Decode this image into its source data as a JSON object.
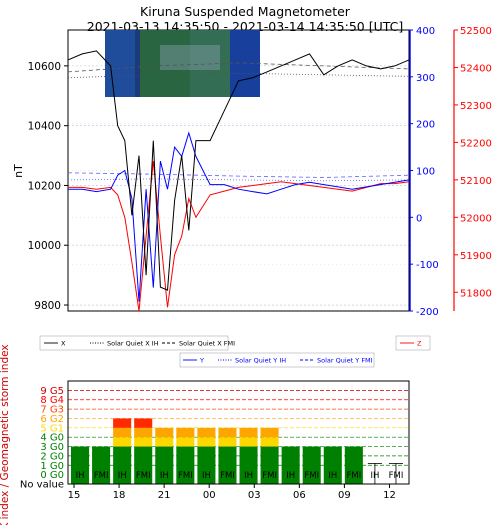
{
  "chart_data": [
    {
      "type": "line",
      "title": "Kiruna Suspended Magnetometer",
      "subtitle": "2021-03-13 14:35:50 - 2021-03-14 14:35:50 [UTC]",
      "ylabel": "nT",
      "ylim_left": [
        9780,
        10720
      ],
      "ylim_blue": [
        -200,
        400
      ],
      "ylim_red": [
        51750,
        52500
      ],
      "left_ticks": [
        9800,
        10000,
        10200,
        10400,
        10600
      ],
      "blue_ticks": [
        -200,
        -100,
        0,
        100,
        200,
        300,
        400
      ],
      "red_ticks": [
        51800,
        51900,
        52000,
        52100,
        52200,
        52300,
        52400,
        52500
      ],
      "colors": {
        "x": "#000000",
        "y": "#0000ff",
        "z": "#ff0000"
      },
      "x_hours": [
        0,
        1,
        2,
        3,
        3.5,
        4,
        4.5,
        5,
        5.5,
        6,
        6.5,
        7,
        7.5,
        8,
        8.5,
        9,
        10,
        11,
        12,
        13,
        14,
        15,
        16,
        17,
        18,
        19,
        20,
        21,
        22,
        23,
        24
      ],
      "series": [
        {
          "name": "X",
          "values": [
            10620,
            10640,
            10650,
            10600,
            10400,
            10350,
            10100,
            10300,
            9900,
            10350,
            9860,
            9850,
            10150,
            10300,
            10050,
            10350,
            10350,
            10450,
            10550,
            10560,
            10580,
            10600,
            10620,
            10640,
            10570,
            10600,
            10620,
            10600,
            10590,
            10600,
            10620
          ]
        },
        {
          "name": "Y",
          "values": [
            60,
            60,
            55,
            60,
            90,
            100,
            40,
            -180,
            60,
            -150,
            120,
            60,
            150,
            130,
            180,
            130,
            70,
            70,
            60,
            55,
            50,
            60,
            70,
            75,
            70,
            65,
            60,
            65,
            70,
            75,
            80
          ]
        },
        {
          "name": "Z",
          "values": [
            52080,
            52080,
            52075,
            52080,
            52060,
            52000,
            51880,
            51750,
            51950,
            52150,
            51950,
            51760,
            51900,
            51950,
            52050,
            52000,
            52060,
            52070,
            52080,
            52085,
            52090,
            52095,
            52090,
            52085,
            52080,
            52075,
            52070,
            52080,
            52090,
            52090,
            52095
          ]
        }
      ],
      "quiet": {
        "x_ih": [
          10560,
          10570,
          10575,
          10570,
          10565
        ],
        "x_fmi": [
          10580,
          10600,
          10610,
          10600,
          10590
        ],
        "y_ih": [
          80,
          82,
          80,
          78,
          80
        ],
        "y_fmi": [
          95,
          92,
          88,
          85,
          90
        ]
      },
      "legend": [
        {
          "label": "X",
          "color": "#000000",
          "style": "solid"
        },
        {
          "label": "Solar Quiet X IH",
          "color": "#000000",
          "style": "dotted"
        },
        {
          "label": "Solar Quiet X FMI",
          "color": "#000000",
          "style": "dashed"
        },
        {
          "label": "Y",
          "color": "#0000ff",
          "style": "solid"
        },
        {
          "label": "Solar Quiet Y IH",
          "color": "#0000ff",
          "style": "dotted"
        },
        {
          "label": "Solar Quiet Y FMI",
          "color": "#0000ff",
          "style": "dashed"
        },
        {
          "label": "Z",
          "color": "#ff0000",
          "style": "solid"
        }
      ]
    },
    {
      "type": "bar",
      "ylabel": "K index / Geomagnetic storm index",
      "levels": [
        {
          "label": "No value",
          "color": "#000000"
        },
        {
          "label": "0 G0",
          "color": "#008000"
        },
        {
          "label": "1 G0",
          "color": "#008000"
        },
        {
          "label": "2 G0",
          "color": "#008000"
        },
        {
          "label": "3 G0",
          "color": "#008000"
        },
        {
          "label": "4 G0",
          "color": "#008000"
        },
        {
          "label": "5 G1",
          "color": "#ffd700"
        },
        {
          "label": "6 G2",
          "color": "#ffa500"
        },
        {
          "label": "7 G3",
          "color": "#ff4500"
        },
        {
          "label": "8 G4",
          "color": "#ff0000"
        },
        {
          "label": "9 G5",
          "color": "#cc0000"
        }
      ],
      "xticks": [
        "15",
        "18",
        "21",
        "00",
        "03",
        "06",
        "09",
        "12"
      ],
      "bars": [
        {
          "label": "IH",
          "k": 4
        },
        {
          "label": "FMI",
          "k": 4
        },
        {
          "label": "IH",
          "k": 7
        },
        {
          "label": "FMI",
          "k": 7
        },
        {
          "label": "IH",
          "k": 6
        },
        {
          "label": "FMI",
          "k": 6
        },
        {
          "label": "IH",
          "k": 6
        },
        {
          "label": "FMI",
          "k": 6
        },
        {
          "label": "IH",
          "k": 6
        },
        {
          "label": "FMI",
          "k": 6
        },
        {
          "label": "IH",
          "k": 4
        },
        {
          "label": "FMI",
          "k": 4
        },
        {
          "label": "IH",
          "k": 4
        },
        {
          "label": "FMI",
          "k": 4
        },
        {
          "label": "IH",
          "k": 0
        },
        {
          "label": "FMI",
          "k": 0
        }
      ]
    }
  ]
}
